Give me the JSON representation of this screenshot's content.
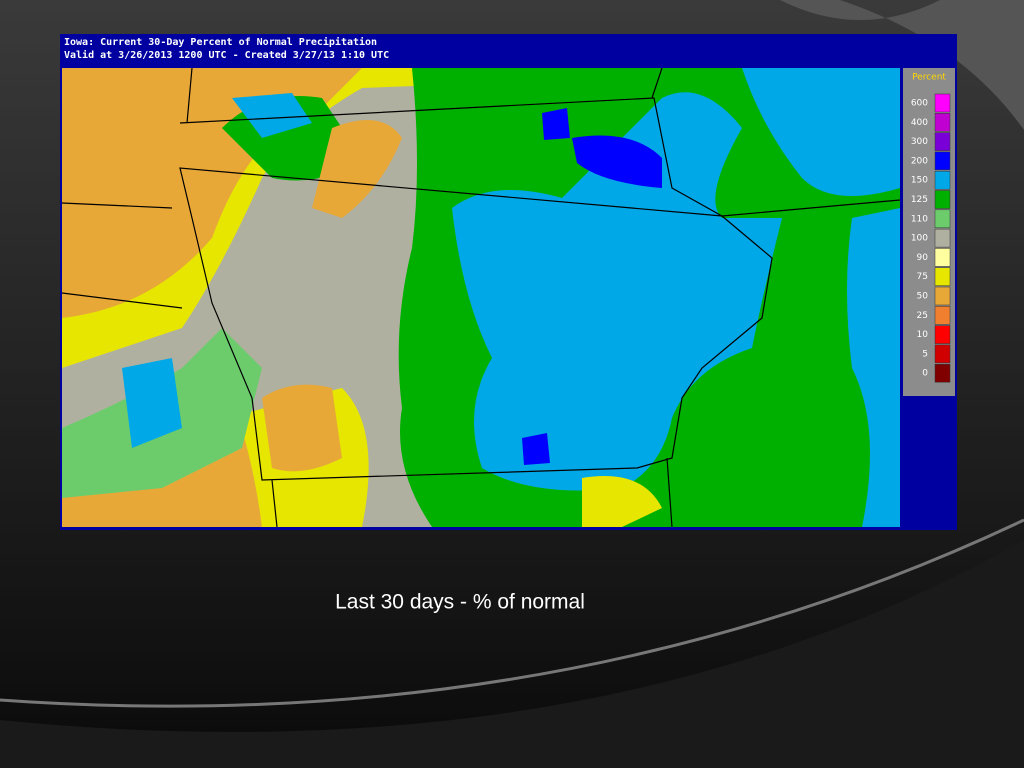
{
  "header": {
    "title": "Iowa: Current 30-Day Percent of Normal Precipitation",
    "subtitle": "Valid at 3/26/2013 1200 UTC - Created 3/27/13 1:10 UTC"
  },
  "legend": {
    "title": "Percent",
    "items": [
      {
        "label": "600",
        "color": "#ff00ff"
      },
      {
        "label": "400",
        "color": "#c000d0"
      },
      {
        "label": "300",
        "color": "#7a00d8"
      },
      {
        "label": "200",
        "color": "#0000ff"
      },
      {
        "label": "150",
        "color": "#00a8e8"
      },
      {
        "label": "125",
        "color": "#00b000"
      },
      {
        "label": "110",
        "color": "#6ccc6c"
      },
      {
        "label": "100",
        "color": "#b0b0a0"
      },
      {
        "label": "90",
        "color": "#ffffa0"
      },
      {
        "label": "75",
        "color": "#e6e600"
      },
      {
        "label": "50",
        "color": "#e8a838"
      },
      {
        "label": "25",
        "color": "#f08030"
      },
      {
        "label": "10",
        "color": "#ff0000"
      },
      {
        "label": "5",
        "color": "#d00000"
      },
      {
        "label": "0",
        "color": "#800000"
      }
    ]
  },
  "caption": "Last 30 days - % of normal"
}
